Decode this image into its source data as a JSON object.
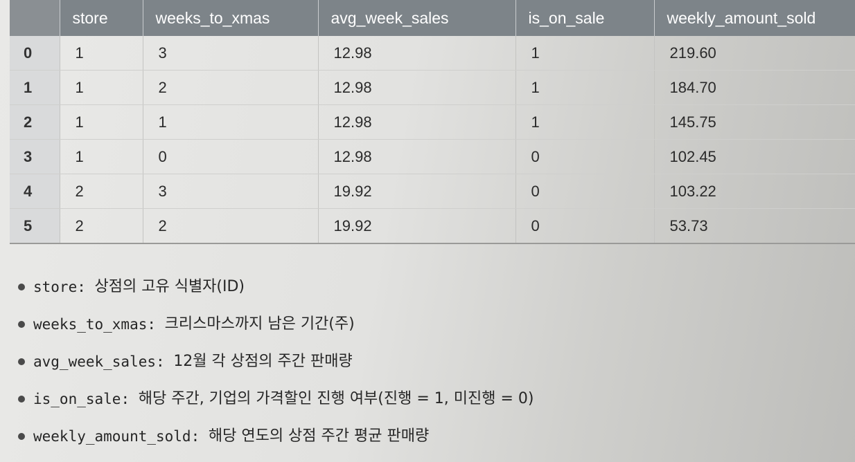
{
  "table": {
    "columns": [
      "",
      "store",
      "weeks_to_xmas",
      "avg_week_sales",
      "is_on_sale",
      "weekly_amount_sold"
    ],
    "rows": [
      [
        "0",
        "1",
        "3",
        "12.98",
        "1",
        "219.60"
      ],
      [
        "1",
        "1",
        "2",
        "12.98",
        "1",
        "184.70"
      ],
      [
        "2",
        "1",
        "1",
        "12.98",
        "1",
        "145.75"
      ],
      [
        "3",
        "1",
        "0",
        "12.98",
        "0",
        "102.45"
      ],
      [
        "4",
        "2",
        "3",
        "19.92",
        "0",
        "103.22"
      ],
      [
        "5",
        "2",
        "2",
        "19.92",
        "0",
        "53.73"
      ]
    ]
  },
  "notes": [
    {
      "term": "store",
      "desc": "상점의 고유 식별자(ID)"
    },
    {
      "term": "weeks_to_xmas",
      "desc": "크리스마스까지 남은 기간(주)"
    },
    {
      "term": "avg_week_sales",
      "desc": "12월 각 상점의 주간 판매량"
    },
    {
      "term": "is_on_sale",
      "desc": "해당 주간, 기업의 가격할인 진행 여부(진행 = 1, 미진행 = 0)"
    },
    {
      "term": "weekly_amount_sold",
      "desc": "해당 연도의 상점 주간 평균 판매량"
    }
  ]
}
